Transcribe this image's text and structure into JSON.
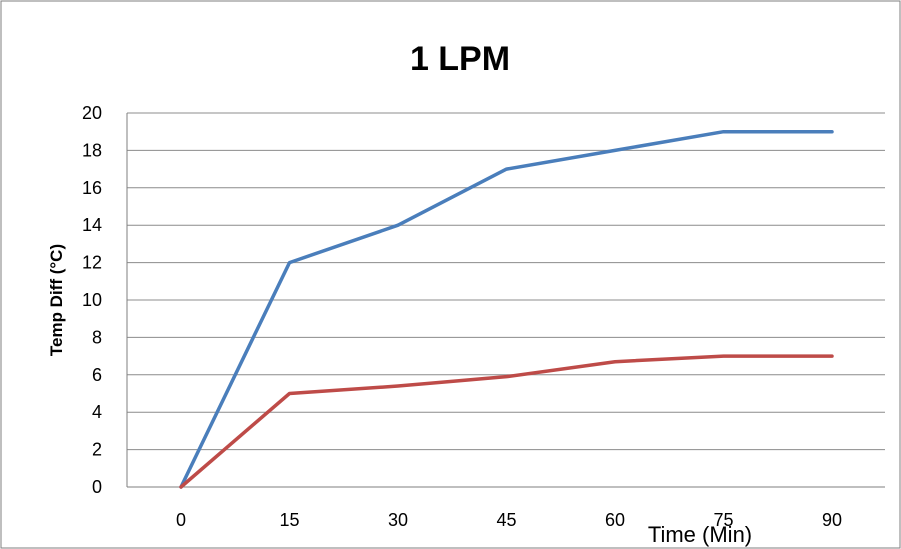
{
  "chart_data": {
    "type": "line",
    "title": "1 LPM",
    "xlabel": "Time (Min)",
    "ylabel": "Temp Diff (°C)",
    "x": [
      0,
      15,
      30,
      45,
      60,
      75,
      90
    ],
    "x_tick_labels": [
      "0",
      "15",
      "30",
      "45",
      "60",
      "75",
      "90"
    ],
    "y_tick_labels": [
      "0",
      "2",
      "4",
      "6",
      "8",
      "10",
      "12",
      "14",
      "16",
      "18",
      "20"
    ],
    "ylim": [
      0,
      20
    ],
    "y_step": 2,
    "grid": true,
    "legend": "none",
    "series": [
      {
        "values": [
          0,
          12,
          14,
          17,
          18,
          19,
          19
        ],
        "color": "#4A7EBB"
      },
      {
        "values": [
          0,
          5,
          5.4,
          5.9,
          6.7,
          7,
          7
        ],
        "color": "#BE4B48"
      }
    ]
  },
  "colors": {
    "grid": "#8C8C8C",
    "axis": "#7F7F7F",
    "frame": "#7F7F7F",
    "text": "#000000"
  }
}
